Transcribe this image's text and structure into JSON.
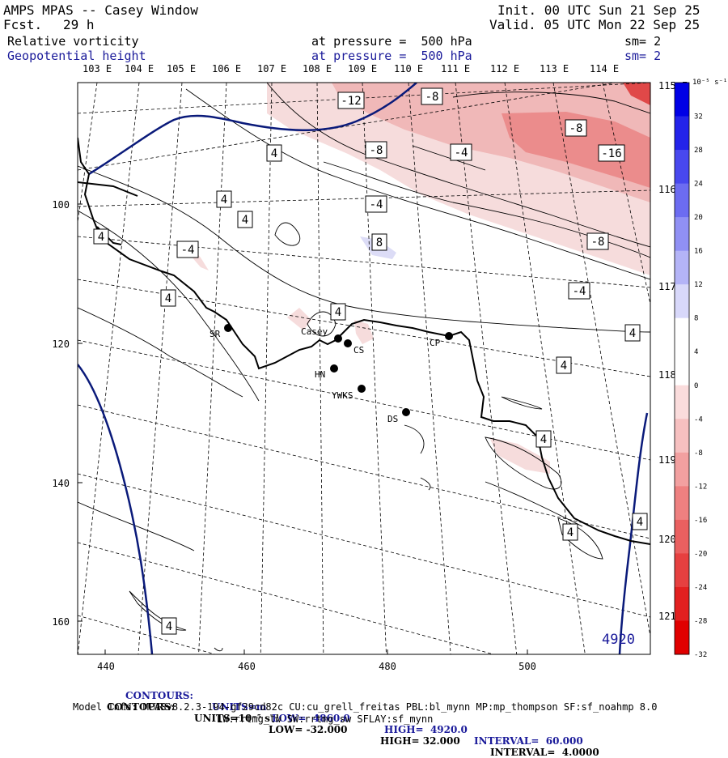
{
  "header": {
    "title": "AMPS MPAS -- Casey Window",
    "forecast_label": "Fcst.",
    "forecast_value": "29 h",
    "init": "Init. 00 UTC Sun 21 Sep 25",
    "valid": "Valid. 05 UTC Mon 22 Sep 25",
    "field1_name": "Relative vorticity",
    "field1_pressure": "at pressure =  500 hPa",
    "field1_sm": "sm= 2",
    "field2_name": "Geopotential height",
    "field2_pressure": "at pressure =  500 hPa",
    "field2_sm": "sm= 2"
  },
  "colors": {
    "accent_blue": "#1a1a9a",
    "height_contour": "#0a1a7a",
    "coast": "#000000",
    "neg_light": "#f6dcdc",
    "neg_medium": "#f0b8b8",
    "neg_strong": "#eb8c8c",
    "neg_darkest": "#e04848",
    "pos_light": "#dcdcf6"
  },
  "map": {
    "top_longitudes": [
      "103 E",
      "104 E",
      "105 E",
      "106 E",
      "107 E",
      "108 E",
      "109 E",
      "110 E",
      "111 E",
      "112 E",
      "113 E",
      "114 E"
    ],
    "right_longitudes": [
      "115 E",
      "116 E",
      "117 E",
      "118 E",
      "119 E",
      "120 E",
      "121 E"
    ],
    "x_ticks": [
      "440",
      "460",
      "480",
      "500"
    ],
    "y_ticks": [
      "100",
      "120",
      "140",
      "160"
    ],
    "stations": [
      {
        "code": "SR"
      },
      {
        "code": "Casey"
      },
      {
        "code": "CS"
      },
      {
        "code": "CP"
      },
      {
        "code": "HN"
      },
      {
        "code": "YWKS"
      },
      {
        "code": "DS"
      }
    ],
    "vorticity_labels": [
      "-12",
      "-8",
      "-8",
      "-4",
      "-8",
      "-16",
      "-4",
      "8",
      "-8",
      "-4",
      "-4",
      "4",
      "4",
      "4",
      "4",
      "4",
      "4",
      "4",
      "4",
      "4",
      "4",
      "4",
      "4"
    ],
    "height_label": "4920"
  },
  "colorbar": {
    "unit": "10⁻⁵ s⁻¹",
    "ticks": [
      "32",
      "28",
      "24",
      "20",
      "16",
      "12",
      "8",
      "4",
      "0",
      "-4",
      "-8",
      "-12",
      "-16",
      "-20",
      "-24",
      "-28",
      "-32"
    ],
    "colors": [
      "#0000e6",
      "#2323ea",
      "#4848ee",
      "#6c6cf1",
      "#9090f4",
      "#b4b4f7",
      "#d8d8fa",
      "#ffffff",
      "#ffffff",
      "#fadcdc",
      "#f6c0c0",
      "#f2a0a0",
      "#ee8080",
      "#ea6060",
      "#e64040",
      "#e22020",
      "#e00000"
    ]
  },
  "footer": {
    "c1_label": "CONTOURS:",
    "c1_units": "UNITS=m",
    "c1_low": "LOW=  4860.0",
    "c1_high": "HIGH=  4920.0",
    "c1_interval": "INTERVAL=  60.000",
    "c2_label": "CONTOURS:",
    "c2_units": "UNITS=10⁻⁵ s⁻¹",
    "c2_low": "LOW= -32.000",
    "c2_high": "HIGH= 32.000",
    "c2_interval": "INTERVAL=  4.0000",
    "model_info": "Model Info: MPASv8.2.3-194-gf29cd82c CU:cu_grell_freitas PBL:bl_mynn MP:mp_thompson SF:sf_noahmp 8.0",
    "model_info2": "LW:rrtmg_lw SW:rrtmg_sw SFLAY:sf_mynn"
  }
}
